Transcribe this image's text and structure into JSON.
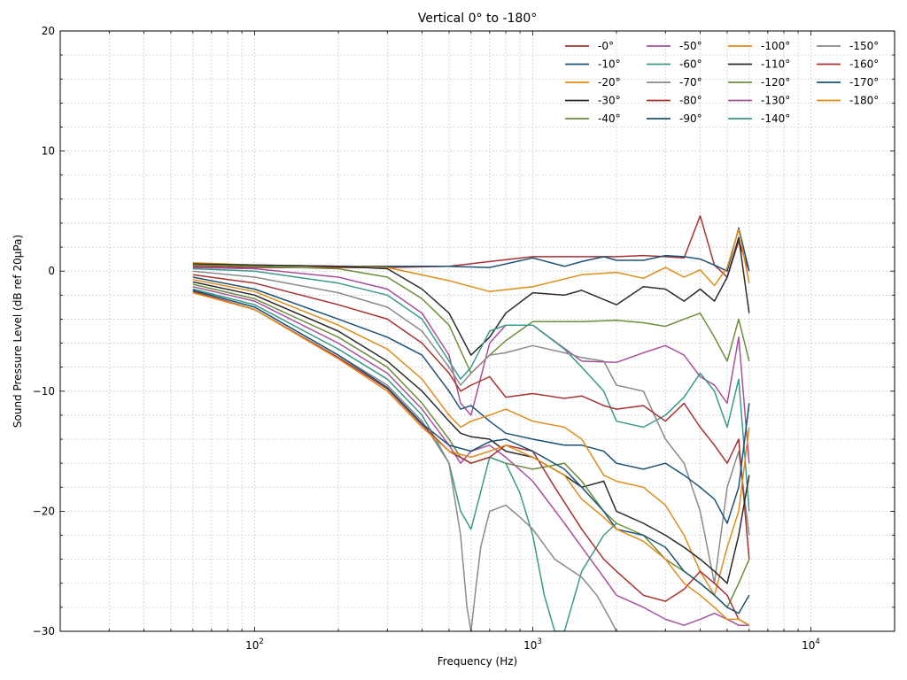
{
  "chart_data": {
    "type": "line",
    "title": "Vertical 0° to -180°",
    "xlabel": "Frequency (Hz)",
    "ylabel": "Sound Pressure Level (dB ref 20µPa)",
    "x_scale": "log",
    "xlim": [
      20,
      20000
    ],
    "ylim": [
      -30,
      20
    ],
    "yticks": [
      -30,
      -20,
      -10,
      0,
      10,
      20
    ],
    "xticks": [
      {
        "value": 100,
        "base": "10",
        "exp": "2"
      },
      {
        "value": 1000,
        "base": "10",
        "exp": "3"
      },
      {
        "value": 10000,
        "base": "10",
        "exp": "4"
      }
    ],
    "grid": true,
    "legend": {
      "position": "top-right",
      "columns": 4
    },
    "series": [
      {
        "name": "-0°",
        "color": "#a83232",
        "x": [
          60,
          100,
          200,
          300,
          500,
          700,
          1000,
          1500,
          2000,
          2500,
          3000,
          3500,
          4000,
          4500,
          5000,
          5500,
          6000
        ],
        "y": [
          0.4,
          0.3,
          0.3,
          0.3,
          0.4,
          0.8,
          1.2,
          1.2,
          1.2,
          1.3,
          1.2,
          1.1,
          4.6,
          0.5,
          -0.5,
          2.5,
          0
        ]
      },
      {
        "name": "-10°",
        "color": "#1b5276",
        "x": [
          60,
          100,
          200,
          300,
          500,
          700,
          1000,
          1300,
          1500,
          1800,
          2000,
          2500,
          3000,
          3500,
          4000,
          4500,
          5000,
          5500,
          6000
        ],
        "y": [
          0.6,
          0.5,
          0.4,
          0.4,
          0.4,
          0.3,
          1.1,
          0.4,
          0.8,
          1.2,
          0.9,
          0.9,
          1.3,
          1.2,
          1.0,
          0.5,
          0,
          3.6,
          0
        ]
      },
      {
        "name": "-20°",
        "color": "#e08b1a",
        "x": [
          60,
          100,
          200,
          300,
          500,
          700,
          1000,
          1500,
          2000,
          2500,
          3000,
          3500,
          4000,
          4500,
          5000,
          5500,
          6000
        ],
        "y": [
          0.7,
          0.5,
          0.4,
          0.3,
          -0.8,
          -1.7,
          -1.3,
          -0.3,
          -0.1,
          -0.6,
          0.3,
          -0.5,
          0.1,
          -1.2,
          0.3,
          3.5,
          -1
        ]
      },
      {
        "name": "-30°",
        "color": "#2b2b2b",
        "x": [
          60,
          100,
          200,
          300,
          400,
          500,
          600,
          700,
          800,
          1000,
          1300,
          1500,
          2000,
          2500,
          3000,
          3500,
          4000,
          4500,
          5000,
          5500,
          6000
        ],
        "y": [
          0.6,
          0.5,
          0.4,
          0.2,
          -1.5,
          -3.5,
          -7,
          -5.5,
          -3.5,
          -1.8,
          -2,
          -1.6,
          -2.8,
          -1.3,
          -1.5,
          -2.5,
          -1.5,
          -2.5,
          -0.5,
          2.8,
          -3.5
        ]
      },
      {
        "name": "-40°",
        "color": "#6b8e3a",
        "x": [
          60,
          100,
          200,
          300,
          400,
          500,
          600,
          700,
          800,
          1000,
          1500,
          2000,
          2500,
          3000,
          3500,
          4000,
          4500,
          5000,
          5500,
          6000
        ],
        "y": [
          0.5,
          0.4,
          0.2,
          -0.5,
          -2.3,
          -4.5,
          -8.5,
          -7,
          -5.8,
          -4.2,
          -4.2,
          -4.1,
          -4.3,
          -4.6,
          -4,
          -3.5,
          -5.5,
          -7.5,
          -4,
          -7.5
        ]
      },
      {
        "name": "-50°",
        "color": "#a8509e",
        "x": [
          60,
          100,
          200,
          300,
          400,
          500,
          550,
          600,
          700,
          800,
          1000,
          1500,
          2000,
          2500,
          3000,
          3500,
          4000,
          4500,
          5000,
          5500,
          6000
        ],
        "y": [
          0.3,
          0.2,
          -0.5,
          -1.5,
          -3.5,
          -7,
          -11,
          -12,
          -6,
          -4.5,
          -4.5,
          -7.5,
          -7.6,
          -6.8,
          -6.2,
          -7,
          -8.8,
          -9.5,
          -11,
          -5.5,
          -16
        ]
      },
      {
        "name": "-60°",
        "color": "#3a9a8a",
        "x": [
          60,
          100,
          200,
          300,
          400,
          500,
          550,
          600,
          700,
          800,
          1000,
          1300,
          1500,
          1800,
          2000,
          2500,
          3000,
          3500,
          4000,
          4500,
          5000,
          5500,
          6000
        ],
        "y": [
          0.2,
          0,
          -1,
          -2,
          -4,
          -7.5,
          -9,
          -8,
          -5,
          -4.5,
          -4.5,
          -6.5,
          -8,
          -10,
          -12.5,
          -13,
          -12,
          -10.5,
          -8.5,
          -10,
          -13,
          -9,
          -20
        ]
      },
      {
        "name": "-70°",
        "color": "#8a8a8a",
        "x": [
          60,
          100,
          200,
          300,
          400,
          500,
          550,
          600,
          700,
          800,
          1000,
          1300,
          1500,
          1800,
          2000,
          2500,
          3000,
          3500,
          4000,
          4500,
          5000,
          5500,
          6000
        ],
        "y": [
          0,
          -0.5,
          -1.8,
          -3,
          -5,
          -8,
          -9.5,
          -8.5,
          -7,
          -6.8,
          -6.2,
          -6.8,
          -7.2,
          -7.5,
          -9.5,
          -10,
          -14,
          -16,
          -20,
          -26,
          -18,
          -15,
          -22
        ]
      },
      {
        "name": "-80°",
        "color": "#a83232",
        "x": [
          60,
          100,
          200,
          300,
          400,
          500,
          550,
          600,
          700,
          800,
          1000,
          1300,
          1500,
          1800,
          2000,
          2500,
          3000,
          3500,
          4000,
          4500,
          5000,
          5500,
          6000
        ],
        "y": [
          -0.3,
          -1,
          -2.8,
          -4,
          -6,
          -8.5,
          -10,
          -9.5,
          -8.8,
          -10.5,
          -10.2,
          -10.6,
          -10.4,
          -11.2,
          -11.5,
          -11.2,
          -12.5,
          -11,
          -13,
          -14.5,
          -16,
          -14,
          -24
        ]
      },
      {
        "name": "-90°",
        "color": "#1b5276",
        "x": [
          60,
          100,
          200,
          300,
          400,
          500,
          550,
          600,
          700,
          800,
          1000,
          1300,
          1500,
          1800,
          2000,
          2500,
          3000,
          3500,
          4000,
          4500,
          5000,
          5500,
          6000
        ],
        "y": [
          -0.5,
          -1.5,
          -4,
          -5.5,
          -7,
          -10,
          -11.5,
          -11.2,
          -12.5,
          -13.5,
          -14,
          -14.5,
          -14.5,
          -15,
          -16,
          -16.5,
          -16,
          -17,
          -18,
          -19,
          -21,
          -18,
          -11
        ]
      },
      {
        "name": "-100°",
        "color": "#e08b1a",
        "x": [
          60,
          100,
          200,
          300,
          400,
          500,
          550,
          600,
          700,
          800,
          1000,
          1300,
          1500,
          1800,
          2000,
          2500,
          3000,
          3500,
          4000,
          4500,
          5000,
          5500,
          6000
        ],
        "y": [
          -0.7,
          -1.7,
          -4.5,
          -6.5,
          -9,
          -12,
          -13,
          -12.5,
          -12,
          -11.5,
          -12.5,
          -13,
          -14,
          -17,
          -17.5,
          -18,
          -19.5,
          -22,
          -25,
          -27,
          -23,
          -20,
          -13
        ]
      },
      {
        "name": "-110°",
        "color": "#2b2b2b",
        "x": [
          60,
          100,
          200,
          300,
          400,
          500,
          550,
          600,
          700,
          800,
          1000,
          1300,
          1500,
          1800,
          2000,
          2500,
          3000,
          3500,
          4000,
          4500,
          5000,
          5500,
          6000
        ],
        "y": [
          -0.9,
          -2,
          -5,
          -7.5,
          -10,
          -12.5,
          -13.5,
          -13.8,
          -14,
          -15,
          -15.5,
          -17,
          -18,
          -17.5,
          -20,
          -21,
          -22,
          -23,
          -24,
          -25,
          -26,
          -22,
          -17
        ]
      },
      {
        "name": "-120°",
        "color": "#6b8e3a",
        "x": [
          60,
          100,
          200,
          300,
          400,
          500,
          550,
          600,
          700,
          800,
          1000,
          1300,
          1500,
          1800,
          2000,
          2500,
          3000,
          3500,
          4000,
          4500,
          5000,
          5500,
          6000
        ],
        "y": [
          -1.1,
          -2.3,
          -5.5,
          -8,
          -11,
          -14,
          -15.5,
          -16,
          -15.5,
          -16,
          -16.5,
          -16,
          -17.5,
          -20,
          -21,
          -22,
          -24,
          -25,
          -26,
          -27,
          -28,
          -26,
          -24
        ]
      },
      {
        "name": "-130°",
        "color": "#a8509e",
        "x": [
          60,
          100,
          200,
          300,
          400,
          500,
          550,
          600,
          700,
          800,
          1000,
          1300,
          1500,
          1800,
          2000,
          2500,
          3000,
          3500,
          4000,
          4500,
          5000,
          5500,
          6000
        ],
        "y": [
          -1.3,
          -2.5,
          -6,
          -8.5,
          -11.5,
          -14.5,
          -16,
          -15,
          -14.5,
          -15.5,
          -17.5,
          -21,
          -23,
          -25.5,
          -27,
          -28,
          -29,
          -29.5,
          -29,
          -28.5,
          -29,
          -29.5,
          -29.5
        ]
      },
      {
        "name": "-140°",
        "color": "#3a9a8a",
        "x": [
          60,
          100,
          200,
          300,
          400,
          500,
          550,
          600,
          700,
          800,
          900,
          1000,
          1100,
          1200,
          1300,
          1500,
          1800,
          2000
        ],
        "y": [
          -1.5,
          -2.8,
          -6.5,
          -9,
          -12,
          -16,
          -20,
          -21.5,
          -15.5,
          -16,
          -18.5,
          -22,
          -27,
          -30,
          -30,
          -25,
          -22,
          -21
        ]
      },
      {
        "name": "-150°",
        "color": "#8a8a8a",
        "x": [
          60,
          100,
          200,
          300,
          400,
          500,
          550,
          580,
          600,
          620,
          650,
          700,
          800,
          900,
          1000,
          1200,
          1500,
          1700,
          1900,
          2000
        ],
        "y": [
          -1.6,
          -3,
          -7,
          -9.5,
          -12.5,
          -16,
          -22,
          -28,
          -30,
          -27,
          -23,
          -20,
          -19.5,
          -20.5,
          -21.5,
          -24,
          -25.5,
          -27,
          -29,
          -30
        ]
      },
      {
        "name": "-160°",
        "color": "#a83232",
        "x": [
          60,
          100,
          200,
          300,
          400,
          500,
          600,
          700,
          800,
          1000,
          1200,
          1500,
          1800,
          2000,
          2500,
          3000,
          3500,
          4000,
          4500,
          5000,
          5500,
          6000
        ],
        "y": [
          -1.7,
          -3.2,
          -7.2,
          -9.8,
          -12.8,
          -15,
          -16,
          -15.5,
          -14.5,
          -15,
          -18,
          -21.5,
          -24,
          -25,
          -27,
          -27.5,
          -26.5,
          -25,
          -26,
          -27,
          -29,
          -29.5
        ]
      },
      {
        "name": "-170°",
        "color": "#1b5276",
        "x": [
          60,
          100,
          200,
          300,
          400,
          500,
          600,
          700,
          800,
          1000,
          1300,
          1500,
          1800,
          2000,
          2500,
          3000,
          3500,
          4000,
          4500,
          5000,
          5500,
          6000
        ],
        "y": [
          -1.6,
          -3,
          -7,
          -9.7,
          -12.7,
          -14.5,
          -15,
          -14.2,
          -14,
          -15,
          -16.5,
          -18,
          -20,
          -21.5,
          -22,
          -23,
          -25,
          -26,
          -27,
          -28,
          -28.5,
          -27
        ]
      },
      {
        "name": "-180°",
        "color": "#e08b1a",
        "x": [
          60,
          100,
          200,
          300,
          400,
          500,
          600,
          700,
          800,
          1000,
          1300,
          1500,
          1800,
          2000,
          2500,
          3000,
          3500,
          4000,
          4500,
          5000,
          5500,
          6000
        ],
        "y": [
          -1.8,
          -3.2,
          -7.3,
          -10,
          -13,
          -15,
          -15.5,
          -15,
          -14.5,
          -15.5,
          -17,
          -19,
          -20.5,
          -21.5,
          -22.5,
          -24,
          -26,
          -27,
          -28,
          -29,
          -29,
          -29.5
        ]
      }
    ]
  }
}
